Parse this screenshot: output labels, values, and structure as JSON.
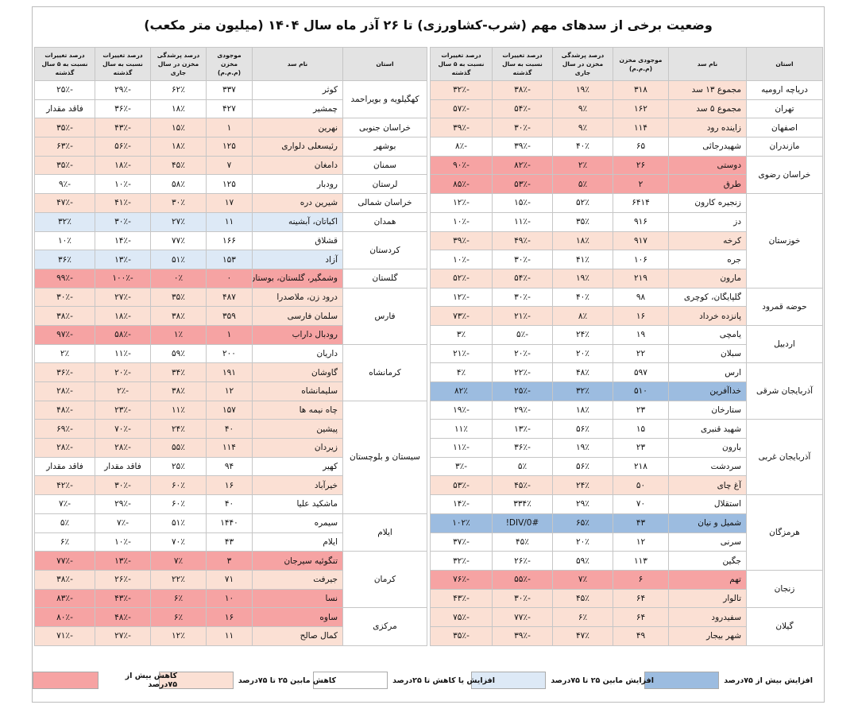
{
  "title": "وضعیت برخی از سدهای مهم (شرب-کشاورزی) تا ۲۶ آذر ماه سال ۱۴۰۴ (میلیون متر مکعب)",
  "headers": [
    "استان",
    "نام سد",
    "موجودی مخزن (م.م.م)",
    "درصد پرشدگی مخزن در سال جاری",
    "درصد تغییرات نسبت به سال گذشته",
    "درصد تغییرات نسبت به ۵ سال گذشته"
  ],
  "right_table": [
    {
      "province": "دریاچه ارومیه",
      "rows": [
        {
          "dam": "مجموع ۱۳ سد",
          "vol": "۳۱۸",
          "fill": "۱۹٪",
          "prev": "-۳۸٪",
          "five": "-۳۲٪",
          "status": "r2"
        }
      ]
    },
    {
      "province": "تهران",
      "rows": [
        {
          "dam": "مجموع ۵ سد",
          "vol": "۱۶۲",
          "fill": "۹٪",
          "prev": "-۵۴٪",
          "five": "-۵۷٪",
          "status": "r2"
        }
      ]
    },
    {
      "province": "اصفهان",
      "rows": [
        {
          "dam": "زاینده رود",
          "vol": "۱۱۴",
          "fill": "۹٪",
          "prev": "-۳۰٪",
          "five": "-۳۹٪",
          "status": "r2"
        }
      ]
    },
    {
      "province": "مازندران",
      "rows": [
        {
          "dam": "شهیدرجائی",
          "vol": "۶۵",
          "fill": "۴۰٪",
          "prev": "-۳۹٪",
          "five": "-۸٪",
          "status": "r3"
        }
      ]
    },
    {
      "province": "خراسان رضوی",
      "rows": [
        {
          "dam": "دوستی",
          "vol": "۲۶",
          "fill": "۲٪",
          "prev": "-۸۲٪",
          "five": "-۹۰٪",
          "status": "r1"
        },
        {
          "dam": "طرق",
          "vol": "۲",
          "fill": "۵٪",
          "prev": "-۵۳٪",
          "five": "-۸۵٪",
          "status": "r1"
        }
      ]
    },
    {
      "province": "خوزستان",
      "rows": [
        {
          "dam": "زنجیره کارون",
          "vol": "۶۴۱۴",
          "fill": "۵۲٪",
          "prev": "-۱۵٪",
          "five": "-۱۲٪",
          "status": "r3"
        },
        {
          "dam": "دز",
          "vol": "۹۱۶",
          "fill": "۳۵٪",
          "prev": "-۱۱٪",
          "five": "-۱۰٪",
          "status": "r3"
        },
        {
          "dam": "کرخه",
          "vol": "۹۱۷",
          "fill": "۱۸٪",
          "prev": "-۴۹٪",
          "five": "-۳۹٪",
          "status": "r2"
        },
        {
          "dam": "جره",
          "vol": "۱۰۶",
          "fill": "۴۱٪",
          "prev": "-۳۰٪",
          "five": "-۱۰٪",
          "status": "r3"
        },
        {
          "dam": "مارون",
          "vol": "۲۱۹",
          "fill": "۱۹٪",
          "prev": "-۵۴٪",
          "five": "-۵۲٪",
          "status": "r2"
        }
      ]
    },
    {
      "province": "حوضه قمرود",
      "rows": [
        {
          "dam": "گلپایگان، کوچری",
          "vol": "۹۸",
          "fill": "۴۰٪",
          "prev": "-۳۰٪",
          "five": "-۱۲٪",
          "status": "r3"
        },
        {
          "dam": "پانزده خرداد",
          "vol": "۱۶",
          "fill": "۸٪",
          "prev": "-۲۱٪",
          "five": "-۷۳٪",
          "status": "r2"
        }
      ]
    },
    {
      "province": "اردبیل",
      "rows": [
        {
          "dam": "یامچی",
          "vol": "۱۹",
          "fill": "۲۴٪",
          "prev": "-۵٪",
          "five": "۳٪",
          "status": "r3"
        },
        {
          "dam": "سبلان",
          "vol": "۲۲",
          "fill": "۲۰٪",
          "prev": "-۲۰٪",
          "five": "-۲۱٪",
          "status": "r3"
        }
      ]
    },
    {
      "province": "آذربایجان شرقی",
      "rows": [
        {
          "dam": "ارس",
          "vol": "۵۹۷",
          "fill": "۴۸٪",
          "prev": "-۲۲٪",
          "five": "۴٪",
          "status": "r3"
        },
        {
          "dam": "خداآفرین",
          "vol": "۵۱۰",
          "fill": "۳۲٪",
          "prev": "-۲۵٪",
          "five": "۸۲٪",
          "status": "r5"
        },
        {
          "dam": "ستارخان",
          "vol": "۲۳",
          "fill": "۱۸٪",
          "prev": "-۲۹٪",
          "five": "-۱۹٪",
          "status": "r3"
        }
      ]
    },
    {
      "province": "آذربایجان غربی",
      "rows": [
        {
          "dam": "شهید قنبری",
          "vol": "۱۵",
          "fill": "۵۶٪",
          "prev": "-۱۳٪",
          "five": "۱۱٪",
          "status": "r3"
        },
        {
          "dam": "بارون",
          "vol": "۲۳",
          "fill": "۱۹٪",
          "prev": "-۳۶٪",
          "five": "-۱۱٪",
          "status": "r3"
        },
        {
          "dam": "سردشت",
          "vol": "۲۱۸",
          "fill": "۵۶٪",
          "prev": "۵٪",
          "five": "-۳٪",
          "status": "r3"
        },
        {
          "dam": "آغ چای",
          "vol": "۵۰",
          "fill": "۲۴٪",
          "prev": "-۴۵٪",
          "five": "-۵۳٪",
          "status": "r2"
        }
      ]
    },
    {
      "province": "هرمزگان",
      "rows": [
        {
          "dam": "استقلال",
          "vol": "۷۰",
          "fill": "۲۹٪",
          "prev": "۳۳۴٪",
          "five": "-۱۴٪",
          "status": "r3"
        },
        {
          "dam": "شمیل و نیان",
          "vol": "۴۳",
          "fill": "۶۵٪",
          "prev": "#DIV/0!",
          "five": "۱۰۲٪",
          "status": "r5"
        },
        {
          "dam": "سرنی",
          "vol": "۱۲",
          "fill": "۲۰٪",
          "prev": "۴۵٪",
          "five": "-۳۷٪",
          "status": "r3"
        },
        {
          "dam": "جگین",
          "vol": "۱۱۳",
          "fill": "۵۹٪",
          "prev": "-۲۶٪",
          "five": "-۳۲٪",
          "status": "r3"
        }
      ]
    },
    {
      "province": "زنجان",
      "rows": [
        {
          "dam": "تهم",
          "vol": "۶",
          "fill": "۷٪",
          "prev": "-۵۵٪",
          "five": "-۷۶٪",
          "status": "r1"
        },
        {
          "dam": "تالوار",
          "vol": "۶۴",
          "fill": "۴۵٪",
          "prev": "-۳۰٪",
          "five": "-۴۳٪",
          "status": "r2"
        }
      ]
    },
    {
      "province": "گیلان",
      "rows": [
        {
          "dam": "سفیدرود",
          "vol": "۶۴",
          "fill": "۶٪",
          "prev": "-۷۷٪",
          "five": "-۷۵٪",
          "status": "r2"
        },
        {
          "dam": "شهر بیجار",
          "vol": "۴۹",
          "fill": "۴۷٪",
          "prev": "-۳۹٪",
          "five": "-۳۵٪",
          "status": "r2"
        }
      ]
    }
  ],
  "left_table": [
    {
      "province": "کهگیلویه و بویراحمد",
      "rows": [
        {
          "dam": "کوثر",
          "vol": "۳۳۷",
          "fill": "۶۲٪",
          "prev": "-۲۹٪",
          "five": "-۲۵٪",
          "status": "r3"
        },
        {
          "dam": "چمشیر",
          "vol": "۴۲۷",
          "fill": "۱۸٪",
          "prev": "-۳۶٪",
          "five": "فاقد مقدار",
          "status": "r3"
        }
      ]
    },
    {
      "province": "خراسان جنوبی",
      "rows": [
        {
          "dam": "نهرین",
          "vol": "۱",
          "fill": "۱۵٪",
          "prev": "-۴۳٪",
          "five": "-۳۵٪",
          "status": "r2"
        }
      ]
    },
    {
      "province": "بوشهر",
      "rows": [
        {
          "dam": "رئیسعلی دلواری",
          "vol": "۱۲۵",
          "fill": "۱۸٪",
          "prev": "-۵۶٪",
          "five": "-۶۳٪",
          "status": "r2"
        }
      ]
    },
    {
      "province": "سمنان",
      "rows": [
        {
          "dam": "دامغان",
          "vol": "۷",
          "fill": "۴۵٪",
          "prev": "-۱۸٪",
          "five": "-۳۵٪",
          "status": "r2"
        }
      ]
    },
    {
      "province": "لرستان",
      "rows": [
        {
          "dam": "رودبار",
          "vol": "۱۲۵",
          "fill": "۵۸٪",
          "prev": "-۱۰٪",
          "five": "-۹٪",
          "status": "r3"
        }
      ]
    },
    {
      "province": "خراسان شمالی",
      "rows": [
        {
          "dam": "شیرین دره",
          "vol": "۱۷",
          "fill": "۳۰٪",
          "prev": "-۴۱٪",
          "five": "-۴۷٪",
          "status": "r2"
        }
      ]
    },
    {
      "province": "همدان",
      "rows": [
        {
          "dam": "اکباتان، آبشینه",
          "vol": "۱۱",
          "fill": "۲۷٪",
          "prev": "-۳۰٪",
          "five": "۳۲٪",
          "status": "r4"
        }
      ]
    },
    {
      "province": "کردستان",
      "rows": [
        {
          "dam": "قشلاق",
          "vol": "۱۶۶",
          "fill": "۷۷٪",
          "prev": "-۱۴٪",
          "five": "۱۰٪",
          "status": "r3"
        },
        {
          "dam": "آزاد",
          "vol": "۱۵۳",
          "fill": "۵۱٪",
          "prev": "-۱۳٪",
          "five": "۳۶٪",
          "status": "r4"
        }
      ]
    },
    {
      "province": "گلستان",
      "rows": [
        {
          "dam": "وشمگیر، گلستان، بوستان",
          "vol": "۰",
          "fill": "۰٪",
          "prev": "-۱۰۰٪",
          "five": "-۹۹٪",
          "status": "r1"
        }
      ]
    },
    {
      "province": "فارس",
      "rows": [
        {
          "dam": "درود زن، ملاصدرا",
          "vol": "۴۸۷",
          "fill": "۳۵٪",
          "prev": "-۲۷٪",
          "five": "-۳۰٪",
          "status": "r2"
        },
        {
          "dam": "سلمان فارسی",
          "vol": "۳۵۹",
          "fill": "۳۸٪",
          "prev": "-۱۸٪",
          "five": "-۳۸٪",
          "status": "r2"
        },
        {
          "dam": "رودبال داراب",
          "vol": "۱",
          "fill": "۱٪",
          "prev": "-۵۸٪",
          "five": "-۹۷٪",
          "status": "r1"
        }
      ]
    },
    {
      "province": "کرمانشاه",
      "rows": [
        {
          "dam": "داریان",
          "vol": "۲۰۰",
          "fill": "۵۹٪",
          "prev": "-۱۱٪",
          "five": "۲٪",
          "status": "r3"
        },
        {
          "dam": "گاوشان",
          "vol": "۱۹۱",
          "fill": "۳۴٪",
          "prev": "-۲۰٪",
          "five": "-۳۶٪",
          "status": "r2"
        },
        {
          "dam": "سلیمانشاه",
          "vol": "۱۲",
          "fill": "۳۸٪",
          "prev": "-۲٪",
          "five": "-۲۸٪",
          "status": "r2"
        }
      ]
    },
    {
      "province": "سیستان و بلوچستان",
      "rows": [
        {
          "dam": "چاه نیمه ها",
          "vol": "۱۵۷",
          "fill": "۱۱٪",
          "prev": "-۲۳٪",
          "five": "-۴۸٪",
          "status": "r2"
        },
        {
          "dam": "پیشین",
          "vol": "۴۰",
          "fill": "۲۴٪",
          "prev": "-۷۰٪",
          "five": "-۶۹٪",
          "status": "r2"
        },
        {
          "dam": "زیردان",
          "vol": "۱۱۴",
          "fill": "۵۵٪",
          "prev": "-۲۸٪",
          "five": "-۲۸٪",
          "status": "r2"
        },
        {
          "dam": "کهیر",
          "vol": "۹۴",
          "fill": "۲۵٪",
          "prev": "فاقد مقدار",
          "five": "فاقد مقدار",
          "status": "r3"
        },
        {
          "dam": "خیرآباد",
          "vol": "۱۶",
          "fill": "۶۰٪",
          "prev": "-۳۰٪",
          "five": "-۴۲٪",
          "status": "r2"
        },
        {
          "dam": "ماشکید علیا",
          "vol": "۴۰",
          "fill": "۶۰٪",
          "prev": "-۲۹٪",
          "five": "-۷٪",
          "status": "r3"
        }
      ]
    },
    {
      "province": "ایلام",
      "rows": [
        {
          "dam": "سیمره",
          "vol": "۱۴۴۰",
          "fill": "۵۱٪",
          "prev": "-۷٪",
          "five": "۵٪",
          "status": "r3"
        },
        {
          "dam": "ایلام",
          "vol": "۴۳",
          "fill": "۷۰٪",
          "prev": "-۱۰٪",
          "five": "۶٪",
          "status": "r3"
        }
      ]
    },
    {
      "province": "کرمان",
      "rows": [
        {
          "dam": "تنگوئیه سیرجان",
          "vol": "۳",
          "fill": "۷٪",
          "prev": "-۱۳٪",
          "five": "-۷۷٪",
          "status": "r1"
        },
        {
          "dam": "جیرفت",
          "vol": "۷۱",
          "fill": "۲۲٪",
          "prev": "-۲۶٪",
          "five": "-۳۸٪",
          "status": "r2"
        },
        {
          "dam": "نسا",
          "vol": "۱۰",
          "fill": "۶٪",
          "prev": "-۴۳٪",
          "five": "-۸۳٪",
          "status": "r1"
        }
      ]
    },
    {
      "province": "مرکزی",
      "rows": [
        {
          "dam": "ساوه",
          "vol": "۱۶",
          "fill": "۶٪",
          "prev": "-۴۸٪",
          "five": "-۸۰٪",
          "status": "r1"
        },
        {
          "dam": "کمال صالح",
          "vol": "۱۱",
          "fill": "۱۲٪",
          "prev": "-۲۷٪",
          "five": "-۷۱٪",
          "status": "r2"
        }
      ]
    }
  ],
  "legend": [
    {
      "label": "افزایش بیش از ۷۵درصد",
      "color": "#9cbce0"
    },
    {
      "label": "افزایش مابین ۲۵ تا ۷۵درصد",
      "color": "#dde9f6"
    },
    {
      "label": "افزایش یا کاهش تا ۲۵درصد",
      "color": "#ffffff"
    },
    {
      "label": "کاهش مابین ۲۵ تا ۷۵درصد",
      "color": "#fbe0d4"
    },
    {
      "label": "کاهش بیش از ۷۵درصد",
      "color": "#f6a3a3"
    }
  ]
}
